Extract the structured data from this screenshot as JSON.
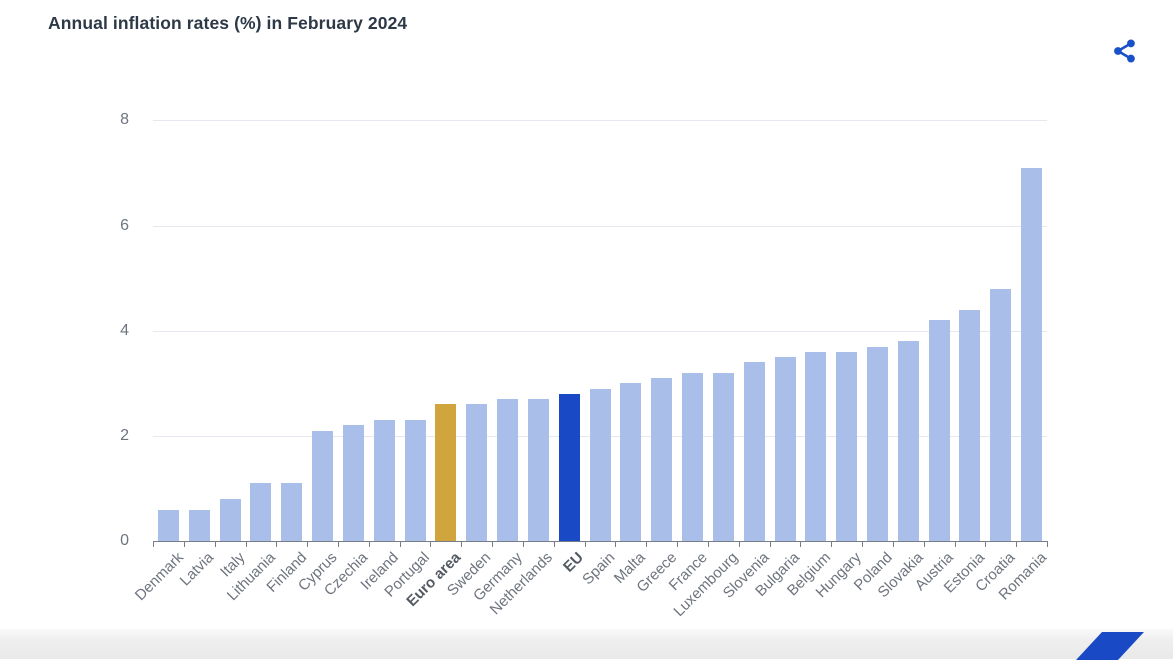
{
  "header": {
    "title": "Annual inflation rates (%) in February 2024"
  },
  "colors": {
    "bar_default": "#a9bfe9",
    "bar_euro_area": "#d0a53e",
    "bar_eu": "#1a49c5",
    "share_icon": "#1a50c8",
    "title_text": "#2e3947",
    "axis_text": "#6e747e",
    "axis_text_emphasis": "#545a63",
    "gridline": "#e6e8f0",
    "axis_line": "#767d86",
    "logo_blue": "#1a49c5"
  },
  "chart_data": {
    "type": "bar",
    "title": "Annual inflation rates (%) in February 2024",
    "xlabel": "",
    "ylabel": "",
    "ylim": [
      0,
      8
    ],
    "yticks": [
      0,
      2,
      4,
      6,
      8
    ],
    "grid": true,
    "legend": "none",
    "categories": [
      "Denmark",
      "Latvia",
      "Italy",
      "Lithuania",
      "Finland",
      "Cyprus",
      "Czechia",
      "Ireland",
      "Portugal",
      "Euro area",
      "Sweden",
      "Germany",
      "Netherlands",
      "EU",
      "Spain",
      "Malta",
      "Greece",
      "France",
      "Luxembourg",
      "Slovenia",
      "Bulgaria",
      "Belgium",
      "Hungary",
      "Poland",
      "Slovakia",
      "Austria",
      "Estonia",
      "Croatia",
      "Romania"
    ],
    "values": [
      0.6,
      0.6,
      0.8,
      1.1,
      1.1,
      2.1,
      2.2,
      2.3,
      2.3,
      2.6,
      2.6,
      2.7,
      2.7,
      2.8,
      2.9,
      3.0,
      3.1,
      3.2,
      3.2,
      3.4,
      3.5,
      3.6,
      3.6,
      3.7,
      3.8,
      4.2,
      4.4,
      4.8,
      7.1
    ],
    "emphasized_categories": [
      "Euro area",
      "EU"
    ],
    "category_colors": {
      "Euro area": "#d0a53e",
      "EU": "#1a49c5"
    }
  }
}
